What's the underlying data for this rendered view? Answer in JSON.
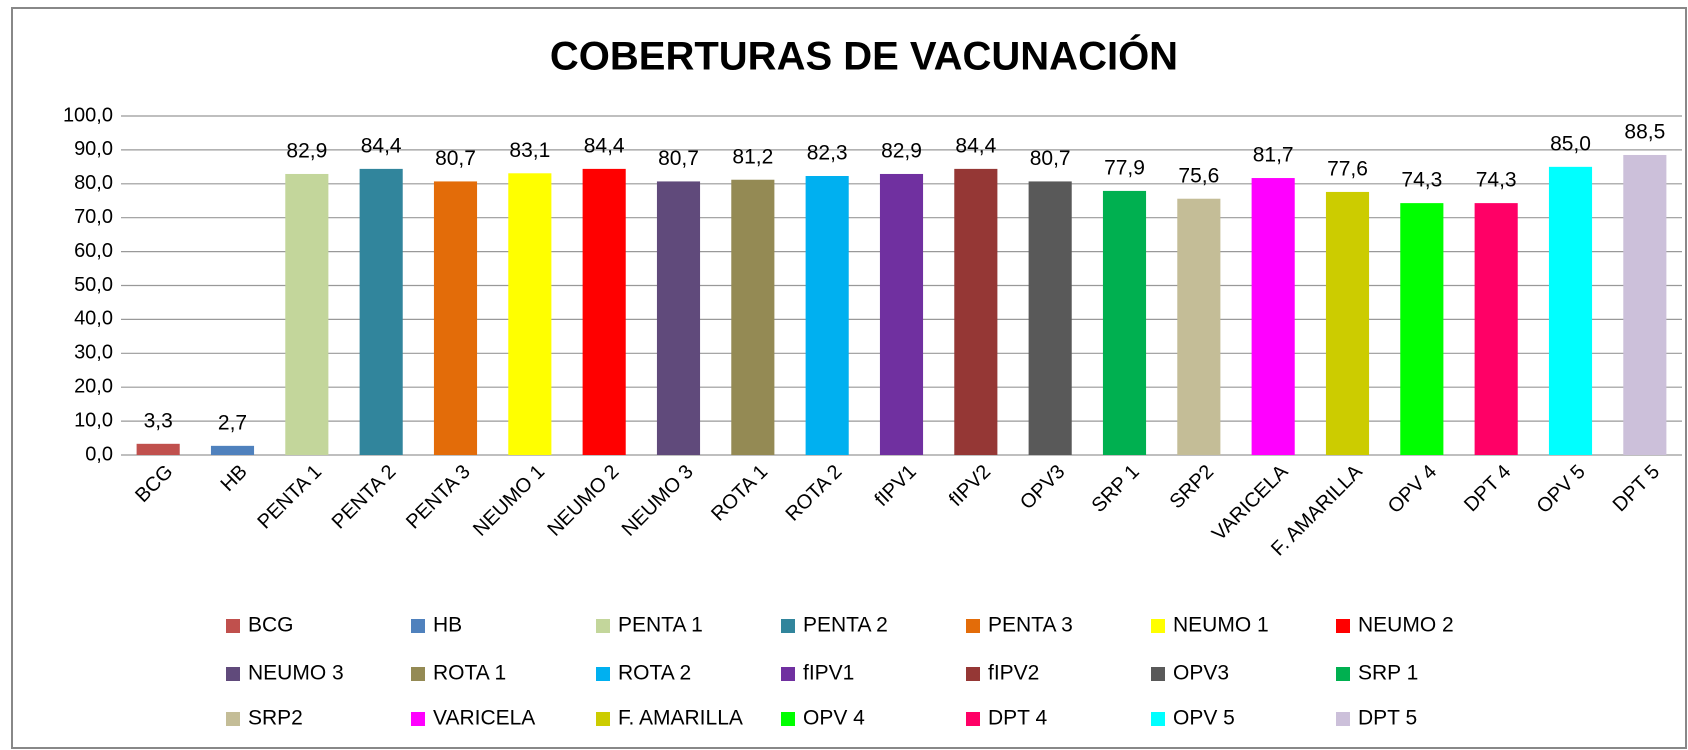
{
  "chart_data": {
    "type": "bar",
    "title": "COBERTURAS DE VACUNACIÓN",
    "categories": [
      "BCG",
      "HB",
      "PENTA 1",
      "PENTA 2",
      "PENTA 3",
      "NEUMO 1",
      "NEUMO 2",
      "NEUMO 3",
      "ROTA 1",
      "ROTA 2",
      "fIPV1",
      "fIPV2",
      "OPV3",
      "SRP 1",
      "SRP2",
      "VARICELA",
      "F. AMARILLA",
      "OPV 4",
      "DPT 4",
      "OPV 5",
      "DPT 5"
    ],
    "values": [
      3.3,
      2.7,
      82.9,
      84.4,
      80.7,
      83.1,
      84.4,
      80.7,
      81.2,
      82.3,
      82.9,
      84.4,
      80.7,
      77.9,
      75.6,
      81.7,
      77.6,
      74.3,
      74.3,
      85.0,
      88.5
    ],
    "value_labels": [
      "3,3",
      "2,7",
      "82,9",
      "84,4",
      "80,7",
      "83,1",
      "84,4",
      "80,7",
      "81,2",
      "82,3",
      "82,9",
      "84,4",
      "80,7",
      "77,9",
      "75,6",
      "81,7",
      "77,6",
      "74,3",
      "74,3",
      "85,0",
      "88,5"
    ],
    "colors": [
      "#c0504d",
      "#4f81bd",
      "#c3d69b",
      "#31859c",
      "#e36c09",
      "#ffff00",
      "#ff0000",
      "#604a7b",
      "#948a54",
      "#00b0f0",
      "#7030a0",
      "#953735",
      "#595959",
      "#00b050",
      "#c4bd97",
      "#ff00ff",
      "#cccc00",
      "#00ff00",
      "#ff0066",
      "#00ffff",
      "#ccc0da"
    ],
    "ylim": [
      0,
      100
    ],
    "yticks": [
      {
        "value": 0,
        "label": "0,0"
      },
      {
        "value": 10,
        "label": "10,0"
      },
      {
        "value": 20,
        "label": "20,0"
      },
      {
        "value": 30,
        "label": "30,0"
      },
      {
        "value": 40,
        "label": "40,0"
      },
      {
        "value": 50,
        "label": "50,0"
      },
      {
        "value": 60,
        "label": "60,0"
      },
      {
        "value": 70,
        "label": "70,0"
      },
      {
        "value": 80,
        "label": "80,0"
      },
      {
        "value": 90,
        "label": "90,0"
      },
      {
        "value": 100,
        "label": "100,0"
      }
    ],
    "grid": true,
    "legend": "bottom"
  }
}
